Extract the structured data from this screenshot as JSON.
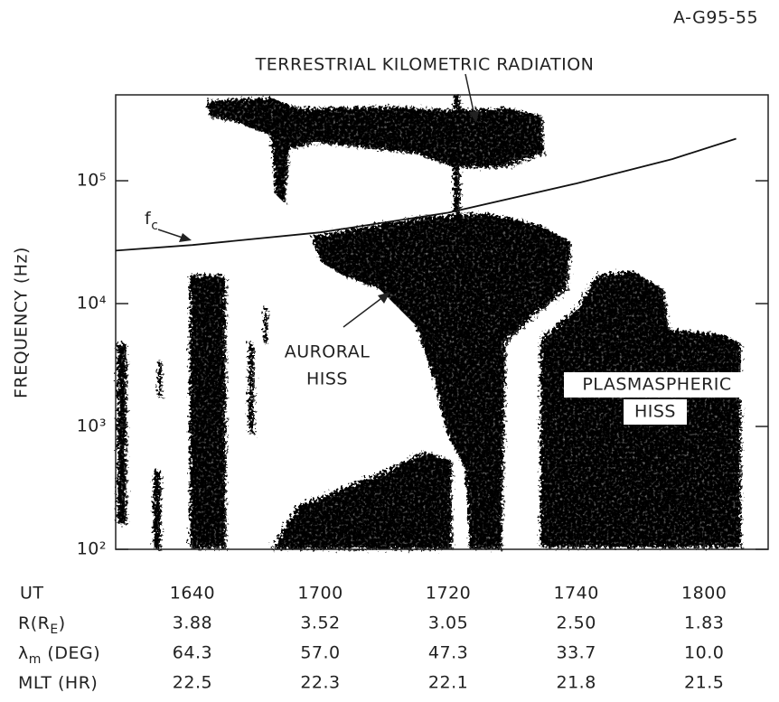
{
  "figure_id": "A-G95-55",
  "chart_data": {
    "type": "line",
    "y_label": "FREQUENCY (Hz)",
    "annotations": {
      "tkr": "TERRESTRIAL KILOMETRIC RADIATION",
      "fc": [
        "f",
        "c"
      ],
      "auroral": [
        "AURORAL",
        "HISS"
      ],
      "plasmaspheric": [
        "PLASMASPHERIC",
        "HISS"
      ]
    },
    "x": [
      988,
      1000,
      1020,
      1040,
      1060,
      1075,
      1085
    ],
    "series": [
      {
        "color": "#111111",
        "values": [
          27000,
          30000,
          38000,
          55000,
          95000,
          150000,
          220000
        ]
      }
    ],
    "xlim": [
      988,
      1090
    ],
    "xticks": [
      {
        "value": 1000,
        "label": "1640"
      },
      {
        "value": 1020,
        "label": "1700"
      },
      {
        "value": 1040,
        "label": "1720"
      },
      {
        "value": 1060,
        "label": "1740"
      },
      {
        "value": 1080,
        "label": "1800"
      }
    ],
    "x_label": "UT",
    "ylim": [
      100,
      500000
    ],
    "log_y": true,
    "yticks": [
      {
        "value": 100,
        "label": "10²"
      },
      {
        "value": 1000,
        "label": "10³"
      },
      {
        "value": 10000,
        "label": "10⁴"
      },
      {
        "value": 100000,
        "label": "10⁵"
      }
    ],
    "rows": [
      {
        "label": [
          "R(R",
          "E",
          ")"
        ],
        "values": [
          "3.88",
          "3.52",
          "3.05",
          "2.50",
          "1.83"
        ]
      },
      {
        "label": [
          "λ",
          "m",
          " (DEG)"
        ],
        "values": [
          "64.3",
          "57.0",
          "47.3",
          "33.7",
          "10.0"
        ]
      },
      {
        "label": [
          "MLT (HR)"
        ],
        "values": [
          "22.5",
          "22.3",
          "22.1",
          "21.8",
          "21.5"
        ]
      }
    ]
  }
}
